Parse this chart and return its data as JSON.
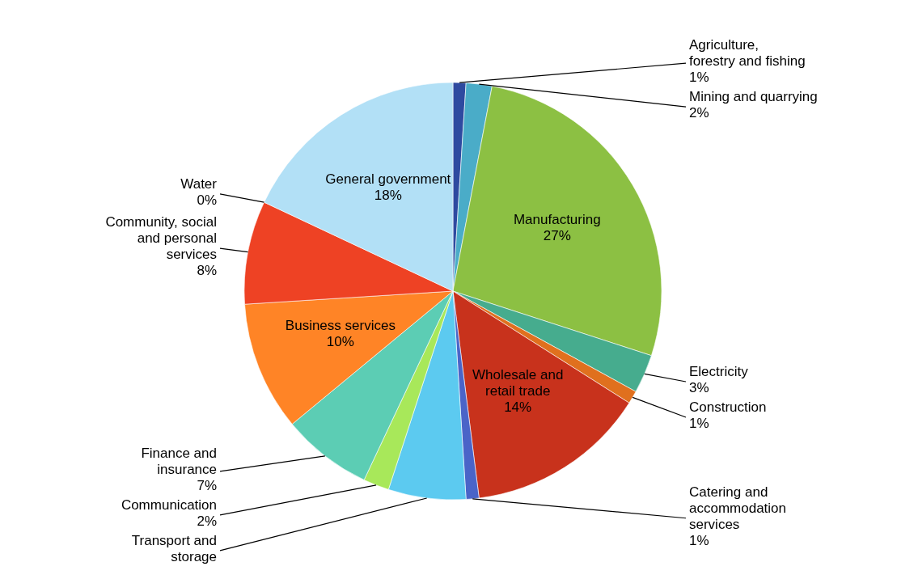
{
  "chart_data": {
    "type": "pie",
    "categories": [
      "Agriculture, forestry and fishing",
      "Mining and quarrying",
      "Manufacturing",
      "Electricity",
      "Construction",
      "Wholesale and retail trade",
      "Catering and accommodation services",
      "Transport and storage",
      "Communication",
      "Finance and insurance",
      "Business services",
      "Community, social and personal services",
      "Water",
      "General government"
    ],
    "values": [
      1,
      2,
      27,
      3,
      1,
      14,
      1,
      6,
      2,
      7,
      10,
      8,
      0,
      18
    ],
    "value_labels": [
      "1%",
      "2%",
      "27%",
      "3%",
      "1%",
      "14%",
      "1%",
      null,
      "2%",
      "7%",
      "10%",
      "8%",
      "0%",
      "18%"
    ],
    "colors": [
      "#2e4aa0",
      "#4aacc8",
      "#8cc043",
      "#46ac8e",
      "#e0701e",
      "#c8321c",
      "#4a64c8",
      "#5ccaf0",
      "#a8e85a",
      "#5ccdb4",
      "#ff8426",
      "#ee4224",
      "#3a7ab0",
      "#b2e0f6"
    ]
  }
}
